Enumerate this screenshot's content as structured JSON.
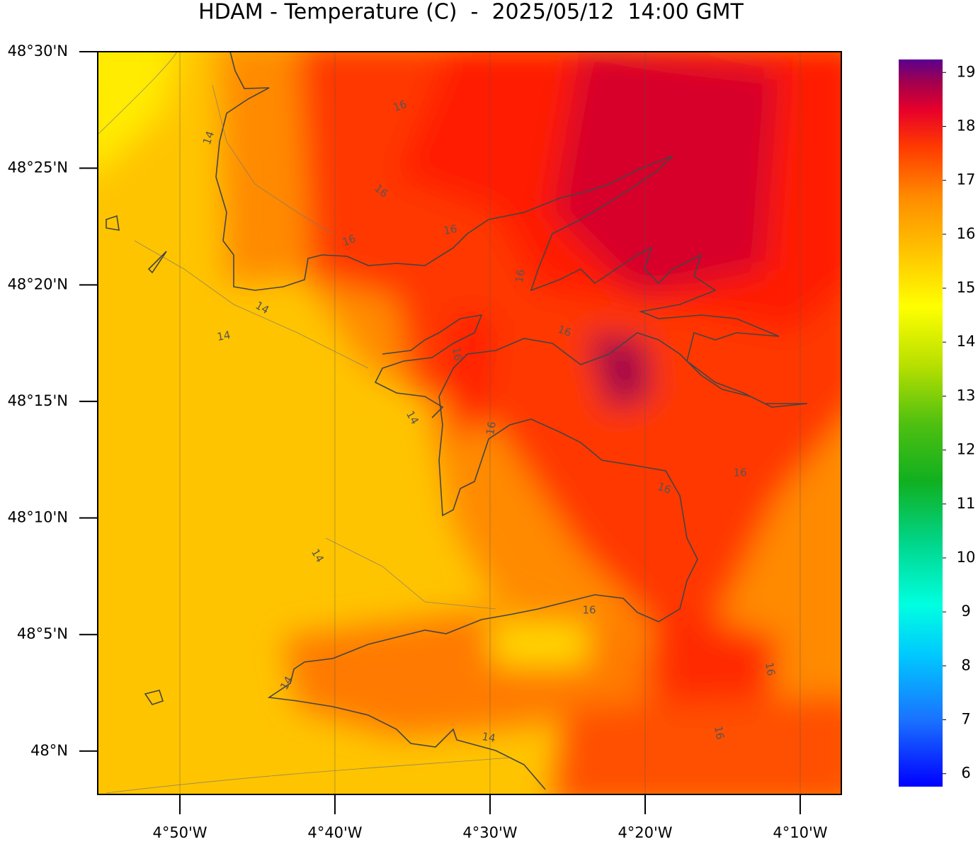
{
  "title": "HDAM - Temperature (C)  -  2025/05/12  14:00 GMT",
  "map": {
    "lat_range": [
      47.969,
      48.5
    ],
    "lon_range": [
      -4.9216,
      -4.1225
    ],
    "lat_ticks": [
      {
        "value": 48.5,
        "label": "48°30'N"
      },
      {
        "value": 48.4167,
        "label": "48°25'N"
      },
      {
        "value": 48.3333,
        "label": "48°20'N"
      },
      {
        "value": 48.25,
        "label": "48°15'N"
      },
      {
        "value": 48.1667,
        "label": "48°10'N"
      },
      {
        "value": 48.0833,
        "label": "48°5'N"
      },
      {
        "value": 48,
        "label": "48°N"
      }
    ],
    "lon_ticks": [
      {
        "value": -4.8333,
        "label": "4°50'W"
      },
      {
        "value": -4.6667,
        "label": "4°40'W"
      },
      {
        "value": -4.5,
        "label": "4°30'W"
      },
      {
        "value": -4.3333,
        "label": "4°20'W"
      },
      {
        "value": -4.1667,
        "label": "4°10'W"
      }
    ],
    "contour_labels": [
      16,
      14,
      16,
      16,
      16,
      14,
      14,
      16,
      16,
      16,
      14,
      16,
      16,
      16,
      14,
      16,
      16,
      14,
      16,
      14
    ]
  },
  "colorbar": {
    "range": [
      5.76,
      19.24
    ],
    "ticks": [
      6,
      7,
      8,
      9,
      10,
      11,
      12,
      13,
      14,
      15,
      16,
      17,
      18,
      19
    ]
  }
}
